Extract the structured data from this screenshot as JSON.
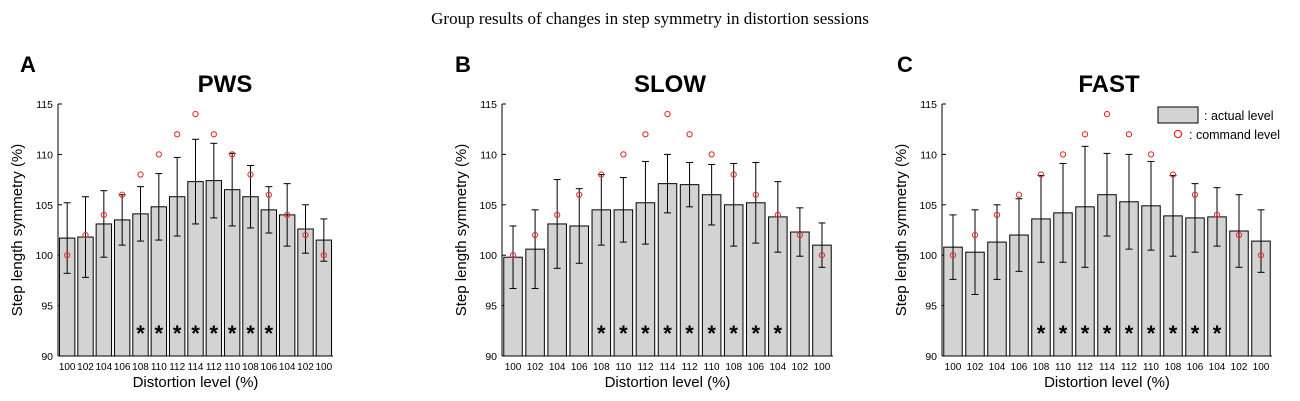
{
  "figure_title": "Group results of changes in step symmetry in distortion sessions",
  "chart_data": [
    {
      "type": "bar",
      "letter": "A",
      "title": "PWS",
      "xlabel": "Distortion level (%)",
      "ylabel": "Step length symmetry (%)",
      "ylim": [
        90,
        115
      ],
      "yticks": [
        90,
        95,
        100,
        105,
        110,
        115
      ],
      "categories": [
        "100",
        "102",
        "104",
        "106",
        "108",
        "110",
        "112",
        "114",
        "112",
        "110",
        "108",
        "106",
        "104",
        "102",
        "100"
      ],
      "series": [
        {
          "values": [
            101.7,
            101.8,
            103.1,
            103.5,
            104.1,
            104.8,
            105.8,
            107.3,
            107.4,
            106.5,
            105.8,
            104.5,
            104.0,
            102.6,
            101.5
          ]
        }
      ],
      "errors": [
        3.5,
        4.0,
        3.3,
        2.5,
        2.7,
        3.3,
        3.9,
        4.2,
        3.7,
        3.6,
        3.1,
        2.3,
        3.1,
        2.4,
        2.1
      ],
      "command_level": [
        100,
        102,
        104,
        106,
        108,
        110,
        112,
        114,
        112,
        110,
        108,
        106,
        104,
        102,
        100
      ],
      "significant": [
        false,
        false,
        false,
        false,
        true,
        true,
        true,
        true,
        true,
        true,
        true,
        true,
        false,
        false,
        false
      ],
      "star_symbol": "*",
      "legend": null
    },
    {
      "type": "bar",
      "letter": "B",
      "title": "SLOW",
      "xlabel": "Distortion level (%)",
      "ylabel": "Step length symmetry (%)",
      "ylim": [
        90,
        115
      ],
      "yticks": [
        90,
        95,
        100,
        105,
        110,
        115
      ],
      "categories": [
        "100",
        "102",
        "104",
        "106",
        "108",
        "110",
        "112",
        "114",
        "112",
        "110",
        "108",
        "106",
        "104",
        "102",
        "100"
      ],
      "series": [
        {
          "values": [
            99.8,
            100.6,
            103.1,
            102.9,
            104.5,
            104.5,
            105.2,
            107.1,
            107.0,
            106.0,
            105.0,
            105.2,
            103.8,
            102.3,
            101.0
          ]
        }
      ],
      "errors": [
        3.1,
        3.9,
        4.4,
        3.7,
        3.5,
        3.2,
        4.1,
        2.9,
        2.2,
        3.0,
        4.1,
        4.0,
        3.5,
        2.4,
        2.2
      ],
      "command_level": [
        100,
        102,
        104,
        106,
        108,
        110,
        112,
        114,
        112,
        110,
        108,
        106,
        104,
        102,
        100
      ],
      "significant": [
        false,
        false,
        false,
        false,
        true,
        true,
        true,
        true,
        true,
        true,
        true,
        true,
        true,
        false,
        false
      ],
      "star_symbol": "*",
      "legend": null
    },
    {
      "type": "bar",
      "letter": "C",
      "title": "FAST",
      "xlabel": "Distortion level (%)",
      "ylabel": "Step length symmetry (%)",
      "ylim": [
        90,
        115
      ],
      "yticks": [
        90,
        95,
        100,
        105,
        110,
        115
      ],
      "categories": [
        "100",
        "102",
        "104",
        "106",
        "108",
        "110",
        "112",
        "114",
        "112",
        "110",
        "108",
        "106",
        "104",
        "102",
        "100"
      ],
      "series": [
        {
          "values": [
            100.8,
            100.3,
            101.3,
            102.0,
            103.6,
            104.2,
            104.8,
            106.0,
            105.3,
            104.9,
            103.9,
            103.7,
            103.8,
            102.4,
            101.4
          ]
        }
      ],
      "errors": [
        3.2,
        4.2,
        3.7,
        3.6,
        4.3,
        4.9,
        6.0,
        4.1,
        4.7,
        4.4,
        4.0,
        3.4,
        2.9,
        3.6,
        3.1
      ],
      "command_level": [
        100,
        102,
        104,
        106,
        108,
        110,
        112,
        114,
        112,
        110,
        108,
        106,
        104,
        102,
        100
      ],
      "significant": [
        false,
        false,
        false,
        false,
        true,
        true,
        true,
        true,
        true,
        true,
        true,
        true,
        true,
        false,
        false
      ],
      "star_symbol": "*",
      "legend": {
        "placement": "top-right",
        "actual_label": ": actual level",
        "command_label": ": command level"
      }
    }
  ],
  "colors": {
    "bar_fill": "#d3d3d3",
    "bar_stroke": "#000000",
    "error_bar": "#000000",
    "command_marker": "#e8302a",
    "axis": "#000000"
  }
}
